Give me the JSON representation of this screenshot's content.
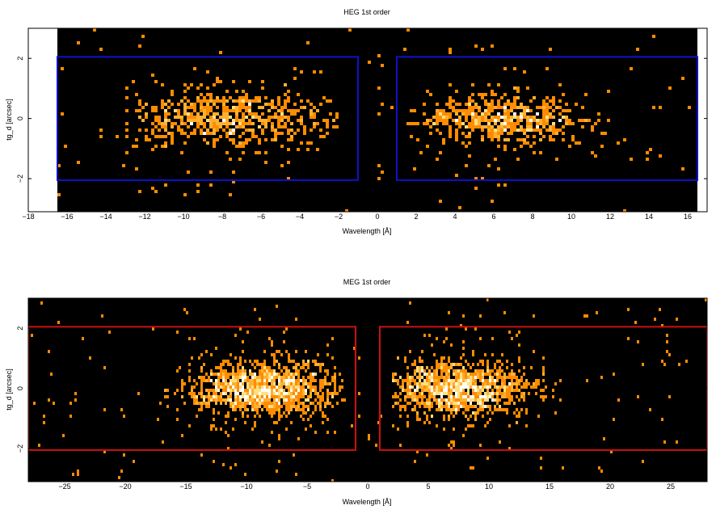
{
  "chart_data": [
    {
      "type": "heatmap",
      "title": "HEG 1st order",
      "xlabel": "Wavelength [Å]",
      "ylabel": "tg_d [arcsec]",
      "xlim": [
        -18,
        17
      ],
      "ylim": [
        -3.1,
        3
      ],
      "data_range_x": [
        -16.5,
        16.5
      ],
      "xticks": [
        -18,
        -16,
        -14,
        -12,
        -10,
        -8,
        -6,
        -4,
        -2,
        0,
        2,
        4,
        6,
        8,
        10,
        12,
        14,
        16
      ],
      "yticks": [
        -2,
        0,
        2
      ],
      "background": "#000000",
      "colormap": [
        "#ff8c00",
        "#ffb030",
        "#ffe080",
        "#ffffff"
      ],
      "region_color": "#1010cc",
      "regions": [
        {
          "x": [
            -16.5,
            -1
          ],
          "y": [
            -2.05,
            2.05
          ]
        },
        {
          "x": [
            1,
            16.5
          ],
          "y": [
            -2.05,
            2.05
          ]
        }
      ],
      "clusters": [
        {
          "center_x": -7.5,
          "sigma_x": 3.0,
          "range_x": [
            -13,
            -2
          ],
          "center_y": 0,
          "sigma_y": 0.45,
          "count": 620
        },
        {
          "center_x": 6.5,
          "sigma_x": 2.2,
          "range_x": [
            1.5,
            14.5
          ],
          "center_y": 0,
          "sigma_y": 0.4,
          "count": 560
        }
      ],
      "background_events": 110
    },
    {
      "type": "heatmap",
      "title": "MEG 1st order",
      "xlabel": "Wavelength [Å]",
      "ylabel": "tg_d [arcsec]",
      "xlim": [
        -28,
        28
      ],
      "ylim": [
        -3.1,
        3
      ],
      "xticks": [
        -25,
        -20,
        -15,
        -10,
        -5,
        0,
        5,
        10,
        15,
        20,
        25
      ],
      "yticks": [
        -2,
        0,
        2
      ],
      "background": "#000000",
      "colormap": [
        "#ff8c00",
        "#ffb030",
        "#ffe080",
        "#ffffff"
      ],
      "region_color": "#cc1010",
      "regions": [
        {
          "x": [
            -28,
            -1
          ],
          "y": [
            -2.05,
            2.05
          ]
        },
        {
          "x": [
            1,
            28
          ],
          "y": [
            -2.05,
            2.05
          ]
        }
      ],
      "clusters": [
        {
          "center_x": -8.5,
          "sigma_x": 3.2,
          "range_x": [
            -17,
            -2
          ],
          "center_y": 0,
          "sigma_y": 0.45,
          "count": 1300
        },
        {
          "center_x": 7.5,
          "sigma_x": 3.0,
          "range_x": [
            2,
            16
          ],
          "center_y": 0,
          "sigma_y": 0.45,
          "count": 1250
        }
      ],
      "background_events": 160
    }
  ]
}
